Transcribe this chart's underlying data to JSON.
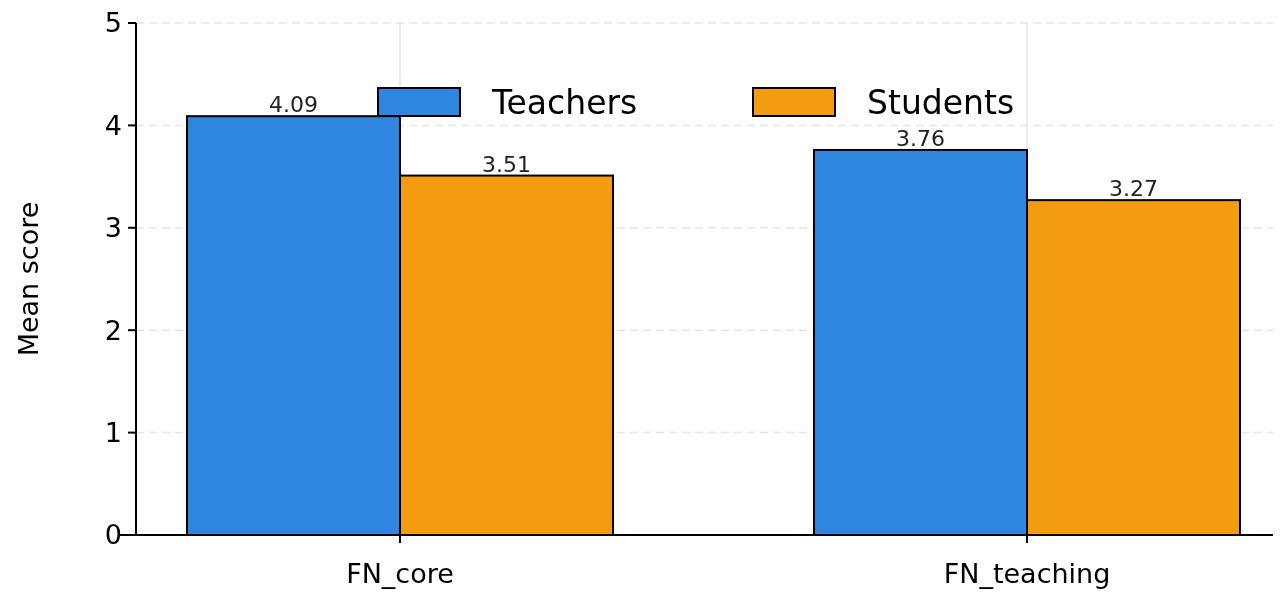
{
  "chart_data": {
    "type": "bar",
    "ylabel": "Mean score",
    "categories": [
      "FN_core",
      "FN_teaching"
    ],
    "series": [
      {
        "name": "Teachers",
        "color": "#2e86de",
        "values": [
          4.09,
          3.76
        ]
      },
      {
        "name": "Students",
        "color": "#f39c12",
        "values": [
          3.51,
          3.27
        ]
      }
    ],
    "ylim": [
      0,
      5
    ],
    "yticks": [
      0,
      1,
      2,
      3,
      4,
      5
    ],
    "grid": true,
    "legend": "top",
    "data_labels": true
  }
}
